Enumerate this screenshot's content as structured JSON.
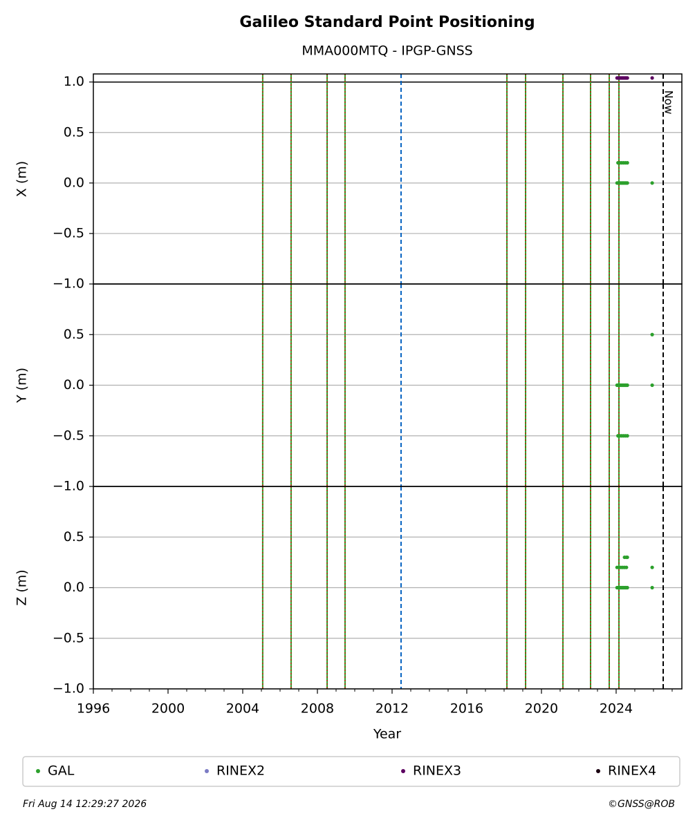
{
  "title": "Galileo Standard Point Positioning",
  "subtitle": "MMA000MTQ - IPGP-GNSS",
  "xlabel": "Year",
  "xlim": [
    1996,
    2027.52
  ],
  "xticks": [
    1996,
    2000,
    2004,
    2008,
    2012,
    2016,
    2020,
    2024
  ],
  "xminorticks": [
    1997,
    1998,
    1999,
    2001,
    2002,
    2003,
    2005,
    2006,
    2007,
    2009,
    2010,
    2011,
    2013,
    2014,
    2015,
    2017,
    2018,
    2019,
    2021,
    2022,
    2023,
    2025,
    2026,
    2027
  ],
  "equipment_changes": [
    2005.07,
    2006.59,
    2008.52,
    2009.48,
    2018.15,
    2019.15,
    2021.15,
    2022.63,
    2023.63,
    2024.15
  ],
  "blue_line": 2012.48,
  "now": 2026.52,
  "now_label": "Now",
  "date": "Fri Aug 14 12:29:27 2026",
  "credit": "©GNSS@ROB",
  "chart_data": [
    {
      "type": "scatter",
      "ylabel": "X (m)",
      "ylim": [
        -1,
        1.08
      ],
      "hline": 1,
      "grid": true,
      "yticks": [
        {
          "value": 1,
          "label": "1.0"
        },
        0.5,
        {
          "value": 0,
          "label": "0.0"
        },
        {
          "value": -0.5,
          "label": "−0.5"
        },
        {
          "value": -1,
          "label": "−1.0"
        }
      ],
      "series": [
        {
          "name": "GAL",
          "color": "#2ca02c",
          "x": [
            2024.05,
            2024.1,
            2024.15,
            2024.2,
            2024.25,
            2024.3,
            2024.35,
            2024.4,
            2024.45,
            2024.5,
            2024.55,
            2024.6,
            2024.1,
            2024.2,
            2024.3,
            2024.4,
            2024.5,
            2024.6,
            2025.93
          ],
          "values": [
            0,
            0,
            0,
            0,
            0,
            0,
            0,
            0,
            0,
            0,
            0,
            0,
            0.2,
            0.2,
            0.2,
            0.2,
            0.2,
            0.2,
            0
          ]
        },
        {
          "name": "RINEX2",
          "color": "#7b7bc4",
          "x": [],
          "values": []
        },
        {
          "name": "RINEX3",
          "color": "#5c0060",
          "x": [
            2024.05,
            2024.1,
            2024.15,
            2024.2,
            2024.25,
            2024.3,
            2024.35,
            2024.4,
            2024.45,
            2024.5,
            2024.55,
            2024.6,
            2025.93
          ],
          "values": [
            1.04,
            1.04,
            1.04,
            1.04,
            1.04,
            1.04,
            1.04,
            1.04,
            1.04,
            1.04,
            1.04,
            1.04,
            1.04
          ]
        },
        {
          "name": "RINEX4",
          "color": "#1a0010",
          "x": [],
          "values": []
        }
      ]
    },
    {
      "type": "scatter",
      "ylabel": "Y (m)",
      "ylim": [
        -1,
        1
      ],
      "grid": true,
      "yticks": [
        0.5,
        {
          "value": 0,
          "label": "0.0"
        },
        {
          "value": -0.5,
          "label": "−0.5"
        },
        {
          "value": -1,
          "label": "−1.0"
        }
      ],
      "series": [
        {
          "name": "GAL",
          "color": "#2ca02c",
          "x": [
            2024.05,
            2024.1,
            2024.15,
            2024.2,
            2024.25,
            2024.3,
            2024.35,
            2024.4,
            2024.45,
            2024.5,
            2024.55,
            2024.6,
            2024.1,
            2024.2,
            2024.3,
            2024.4,
            2024.5,
            2024.6,
            2025.93,
            2025.93
          ],
          "values": [
            0,
            0,
            0,
            0,
            0,
            0,
            0,
            0,
            0,
            0,
            0,
            0,
            -0.5,
            -0.5,
            -0.5,
            -0.5,
            -0.5,
            -0.5,
            0.5,
            0
          ]
        }
      ]
    },
    {
      "type": "scatter",
      "ylabel": "Z (m)",
      "ylim": [
        -1,
        1
      ],
      "grid": true,
      "yticks": [
        0.5,
        {
          "value": 0,
          "label": "0.0"
        },
        {
          "value": -0.5,
          "label": "−0.5"
        },
        {
          "value": -1,
          "label": "−1.0"
        }
      ],
      "series": [
        {
          "name": "GAL",
          "color": "#2ca02c",
          "x": [
            2024.05,
            2024.1,
            2024.15,
            2024.2,
            2024.25,
            2024.3,
            2024.35,
            2024.4,
            2024.45,
            2024.5,
            2024.55,
            2024.6,
            2024.05,
            2024.15,
            2024.25,
            2024.35,
            2024.45,
            2024.55,
            2024.45,
            2024.55,
            2024.6,
            2025.93,
            2025.93
          ],
          "values": [
            0,
            0,
            0,
            0,
            0,
            0,
            0,
            0,
            0,
            0,
            0,
            0,
            0.2,
            0.2,
            0.2,
            0.2,
            0.2,
            0.2,
            0.3,
            0.3,
            0.3,
            0.2,
            0
          ]
        }
      ]
    }
  ]
}
